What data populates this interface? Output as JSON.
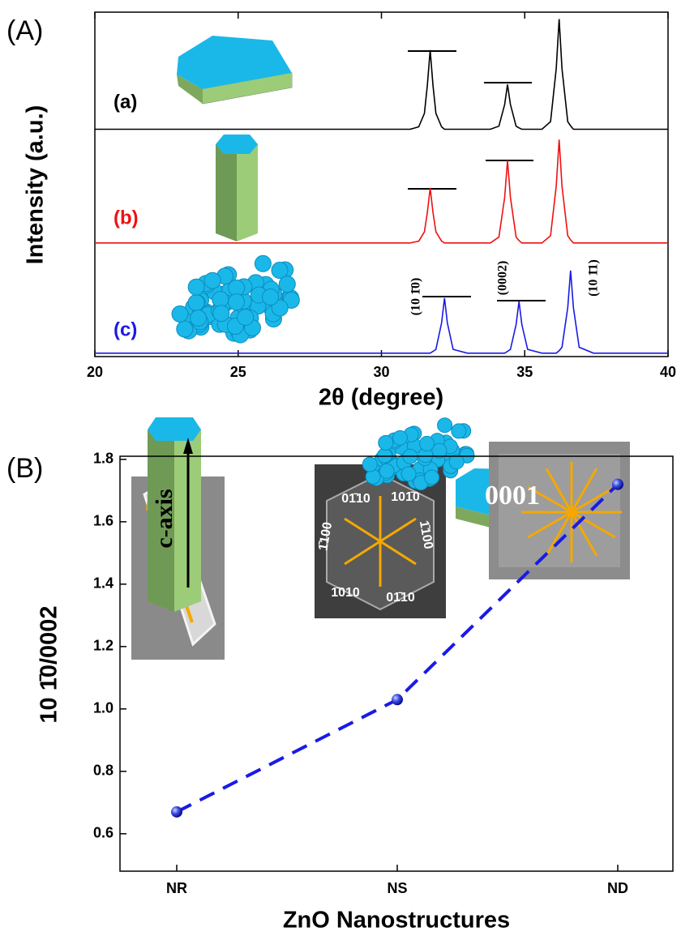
{
  "chart_data": [
    {
      "type": "line",
      "panel_label": "(A)",
      "ylabel": "Intensity (a.u.)",
      "xlabel": "2θ (degree)",
      "xlim": [
        20,
        40
      ],
      "xticks": [
        20,
        25,
        30,
        35,
        40
      ],
      "ylim": [
        0,
        100
      ],
      "x": [
        20,
        25,
        30,
        31.0,
        31.3,
        31.5,
        31.6,
        31.7,
        31.8,
        31.9,
        32.1,
        32.2,
        32.3,
        32.5,
        33.0,
        33.8,
        34.1,
        34.3,
        34.4,
        34.5,
        34.7,
        34.8,
        34.9,
        35.1,
        35.6,
        35.9,
        36.1,
        36.2,
        36.3,
        36.5,
        36.6,
        36.7,
        36.9,
        37.4,
        38,
        40
      ],
      "series": [
        {
          "name": "(a)",
          "color": "#000000",
          "values": [
            66,
            66,
            66,
            66,
            66.7,
            70.6,
            78.7,
            89,
            78.7,
            70.6,
            66.7,
            66,
            66,
            66,
            66,
            66,
            66.9,
            73.2,
            79,
            73.2,
            66.9,
            66.4,
            66,
            66,
            66,
            68.2,
            83.6,
            98,
            83.6,
            68.2,
            67,
            66,
            66,
            66,
            66,
            66
          ]
        },
        {
          "name": "(b)",
          "color": "#ee1111",
          "values": [
            33,
            33,
            33,
            33,
            33.5,
            36.2,
            41.8,
            49,
            41.8,
            36.2,
            33.5,
            33,
            33,
            33,
            33,
            33,
            34.7,
            46.2,
            57,
            46.2,
            34.7,
            33.7,
            33,
            33,
            33,
            35.1,
            49.5,
            63,
            49.5,
            35.1,
            33.9,
            33,
            33,
            33,
            33,
            33
          ]
        },
        {
          "name": "(c)",
          "color": "#1a1ae6",
          "values": [
            1,
            1,
            1,
            1,
            1,
            1,
            1,
            1,
            1.5,
            2.1,
            9.8,
            17,
            9.8,
            2.1,
            1,
            1,
            1,
            1,
            1.5,
            2.1,
            9.3,
            16,
            9.3,
            2.1,
            1,
            1,
            1,
            1.7,
            2.7,
            14.2,
            25,
            14.2,
            2.7,
            1,
            1,
            1
          ]
        }
      ],
      "annotations": [
        "(10 1̄0)",
        "(0002)",
        "(10 1̄1)"
      ]
    },
    {
      "type": "line",
      "panel_label": "(B)",
      "ylabel": "10 1̄0/0002",
      "xlabel": "ZnO Nanostructures",
      "categories": [
        "NR",
        "NS",
        "ND"
      ],
      "values": [
        0.67,
        1.03,
        1.72
      ],
      "color": "#1a1ae6",
      "ylim": [
        0.48,
        1.81
      ],
      "yticks": [
        0.6,
        0.8,
        {
          "value": 1,
          "label": "1.0"
        },
        1.2,
        1.4,
        1.6,
        1.8
      ],
      "annotations": [
        "0001",
        "c-axis",
        "01̄10",
        "101̄0",
        "1̄100",
        "1̄100",
        "1̄010",
        "01̄10"
      ]
    }
  ]
}
